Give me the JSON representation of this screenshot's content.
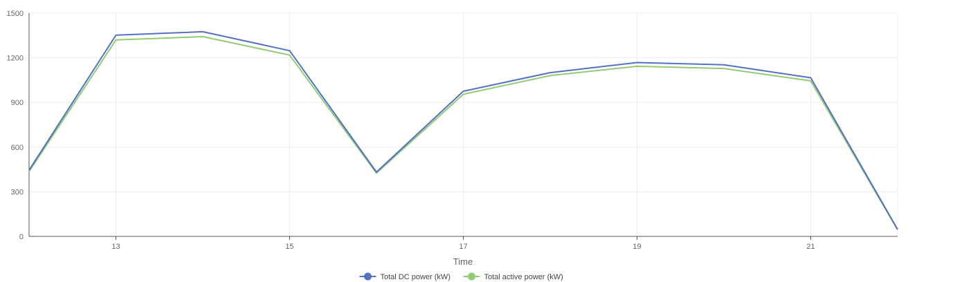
{
  "chart_data": {
    "type": "line",
    "title": "",
    "xlabel": "Time",
    "ylabel": "",
    "x": [
      12,
      13,
      14,
      15,
      16,
      17,
      18,
      19,
      20,
      21,
      22
    ],
    "xlim": [
      12,
      22
    ],
    "x_ticks": [
      13,
      15,
      17,
      19,
      21
    ],
    "ylim": [
      0,
      1500
    ],
    "y_ticks": [
      0,
      300,
      600,
      900,
      1200,
      1500
    ],
    "grid": true,
    "legend_position": "bottom-center",
    "series": [
      {
        "name": "Total DC power (kW)",
        "color": "#5470c6",
        "values": [
          445,
          1352,
          1375,
          1248,
          432,
          975,
          1100,
          1168,
          1153,
          1066,
          47
        ]
      },
      {
        "name": "Total active power (kW)",
        "color": "#91cc75",
        "values": [
          435,
          1320,
          1342,
          1218,
          425,
          955,
          1080,
          1143,
          1128,
          1045,
          44
        ]
      }
    ]
  }
}
